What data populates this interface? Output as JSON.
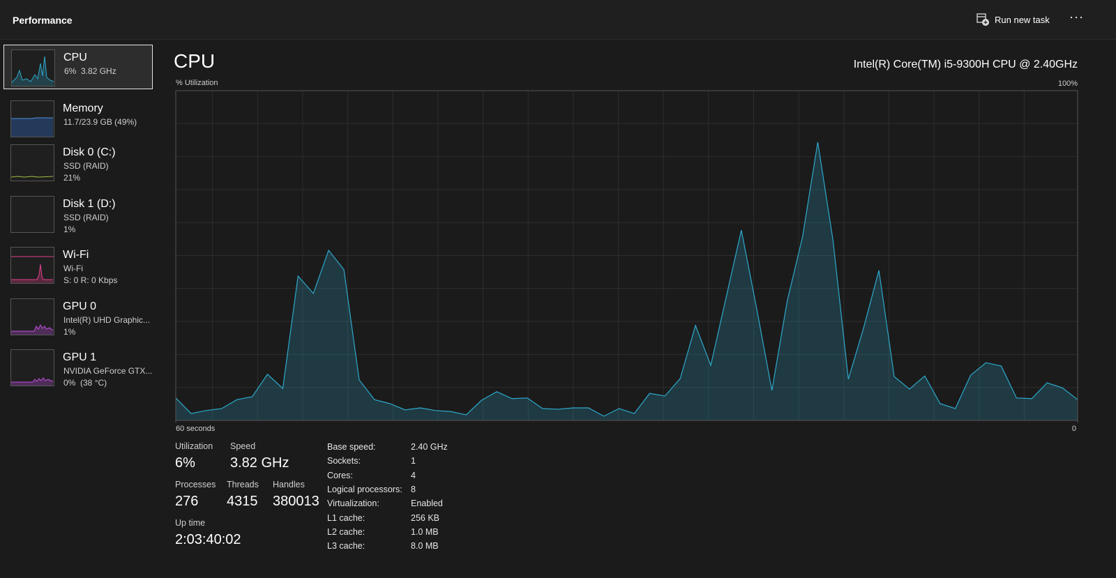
{
  "header": {
    "title": "Performance",
    "action": "Run new task"
  },
  "sidebar": [
    {
      "name": "CPU",
      "lines": [
        "6%  3.82 GHz"
      ]
    },
    {
      "name": "Memory",
      "lines": [
        "11.7/23.9 GB (49%)"
      ]
    },
    {
      "name": "Disk 0 (C:)",
      "lines": [
        "SSD (RAID)",
        "21%"
      ]
    },
    {
      "name": "Disk 1 (D:)",
      "lines": [
        "SSD (RAID)",
        "1%"
      ]
    },
    {
      "name": "Wi-Fi",
      "lines": [
        "Wi-Fi",
        "S: 0 R: 0 Kbps"
      ]
    },
    {
      "name": "GPU 0",
      "lines": [
        "Intel(R) UHD Graphic...",
        "1%"
      ]
    },
    {
      "name": "GPU 1",
      "lines": [
        "NVIDIA GeForce GTX...",
        "0%  (38 °C)"
      ]
    }
  ],
  "main": {
    "title": "CPU",
    "model": "Intel(R) Core(TM) i5-9300H CPU @ 2.40GHz"
  },
  "chart_data": {
    "type": "area",
    "ylabel": "% Utilization",
    "color": "#2ea9cd",
    "ylim": [
      0,
      100
    ],
    "yticks": [
      {
        "value": 100,
        "label": "100%"
      }
    ],
    "xlim": [
      60,
      0
    ],
    "xticks": [
      {
        "value": 60,
        "label": "60 seconds"
      },
      0
    ],
    "values": [
      6.8,
      2.1,
      3.0,
      3.6,
      6.3,
      7.2,
      14.0,
      9.7,
      43.8,
      38.5,
      51.6,
      45.7,
      12.3,
      6.3,
      5.1,
      3.2,
      3.8,
      3.0,
      2.7,
      1.7,
      6.1,
      8.7,
      6.6,
      6.8,
      3.6,
      3.4,
      3.8,
      3.8,
      1.3,
      3.6,
      2.1,
      8.2,
      7.4,
      12.7,
      28.8,
      16.7,
      37.2,
      57.7,
      34.0,
      9.1,
      36.2,
      55.6,
      84.4,
      54.5,
      12.5,
      28.1,
      45.5,
      13.3,
      9.5,
      13.5,
      5.1,
      3.6,
      13.7,
      17.5,
      16.5,
      6.8,
      6.6,
      11.4,
      9.9,
      6.3
    ]
  },
  "stats": [
    {
      "label": "Utilization",
      "value": "6%"
    },
    {
      "label": "Speed",
      "value": "3.82 GHz"
    },
    {
      "label": "Processes",
      "value": "276"
    },
    {
      "label": "Threads",
      "value": "4315"
    },
    {
      "label": "Handles",
      "value": "380013"
    },
    {
      "label": "Up time",
      "value": "2:03:40:02"
    }
  ],
  "specs": [
    [
      "Base speed:",
      "2.40 GHz"
    ],
    [
      "Sockets:",
      "1"
    ],
    [
      "Cores:",
      "4"
    ],
    [
      "Logical processors:",
      "8"
    ],
    [
      "Virtualization:",
      "Enabled"
    ],
    [
      "L1 cache:",
      "256 KB"
    ],
    [
      "L2 cache:",
      "1.0 MB"
    ],
    [
      "L3 cache:",
      "8.0 MB"
    ]
  ]
}
